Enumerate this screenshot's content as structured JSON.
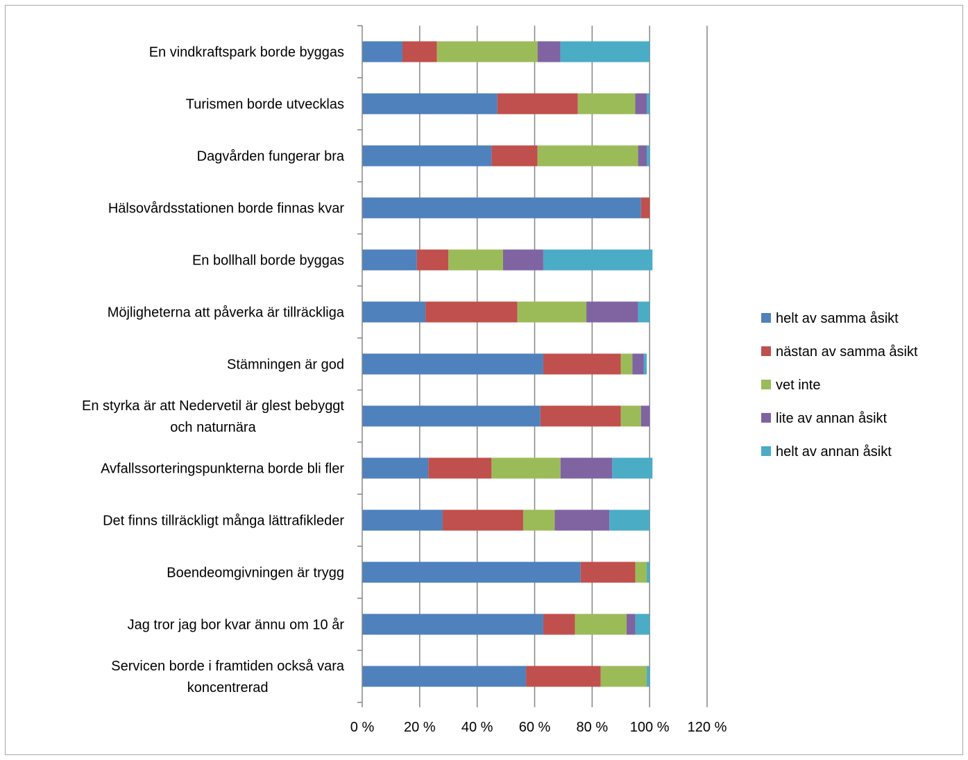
{
  "chart_data": {
    "type": "bar",
    "orientation": "horizontal",
    "stacked": true,
    "title": "",
    "xlabel": "",
    "ylabel": "",
    "xlim": [
      0,
      120
    ],
    "x_ticks": [
      "0 %",
      "20 %",
      "40 %",
      "60 %",
      "80 %",
      "100 %",
      "120 %"
    ],
    "grid": "vertical major gridlines",
    "legend_position": "right",
    "categories": [
      [
        "En vindkraftspark borde byggas"
      ],
      [
        "Turismen borde utvecklas"
      ],
      [
        "Dagvården fungerar bra"
      ],
      [
        "Hälsovårdsstationen borde finnas kvar"
      ],
      [
        "En bollhall borde byggas"
      ],
      [
        "Möjligheterna att påverka är tillräckliga"
      ],
      [
        "Stämningen är god"
      ],
      [
        "En styrka är att Nedervetil är glest bebyggt",
        "och naturnära"
      ],
      [
        "Avfallssorteringspunkterna borde bli fler"
      ],
      [
        "Det finns tillräckligt många lättrafikleder"
      ],
      [
        "Boendeomgivningen är trygg"
      ],
      [
        "Jag tror jag bor kvar ännu om 10 år"
      ],
      [
        "Servicen borde i framtiden också vara",
        "koncentrerad"
      ]
    ],
    "series": [
      {
        "name": "helt av samma åsikt",
        "color": "#4f81bd",
        "values": [
          14,
          47,
          45,
          97,
          19,
          22,
          63,
          62,
          23,
          28,
          76,
          63,
          57
        ]
      },
      {
        "name": "nästan av samma åsikt",
        "color": "#c0504d",
        "values": [
          12,
          28,
          16,
          3,
          11,
          32,
          27,
          28,
          22,
          28,
          19,
          11,
          26
        ]
      },
      {
        "name": "vet inte",
        "color": "#9bbb59",
        "values": [
          35,
          20,
          35,
          0,
          19,
          24,
          4,
          7,
          24,
          11,
          4,
          18,
          16
        ]
      },
      {
        "name": "lite av annan åsikt",
        "color": "#8064a2",
        "values": [
          8,
          4,
          3,
          0,
          14,
          18,
          4,
          3,
          18,
          19,
          0,
          3,
          0
        ]
      },
      {
        "name": "helt av annan åsikt",
        "color": "#4bacc6",
        "values": [
          31,
          1,
          1,
          0,
          38,
          4,
          1,
          0,
          14,
          14,
          1,
          5,
          1
        ]
      }
    ]
  }
}
